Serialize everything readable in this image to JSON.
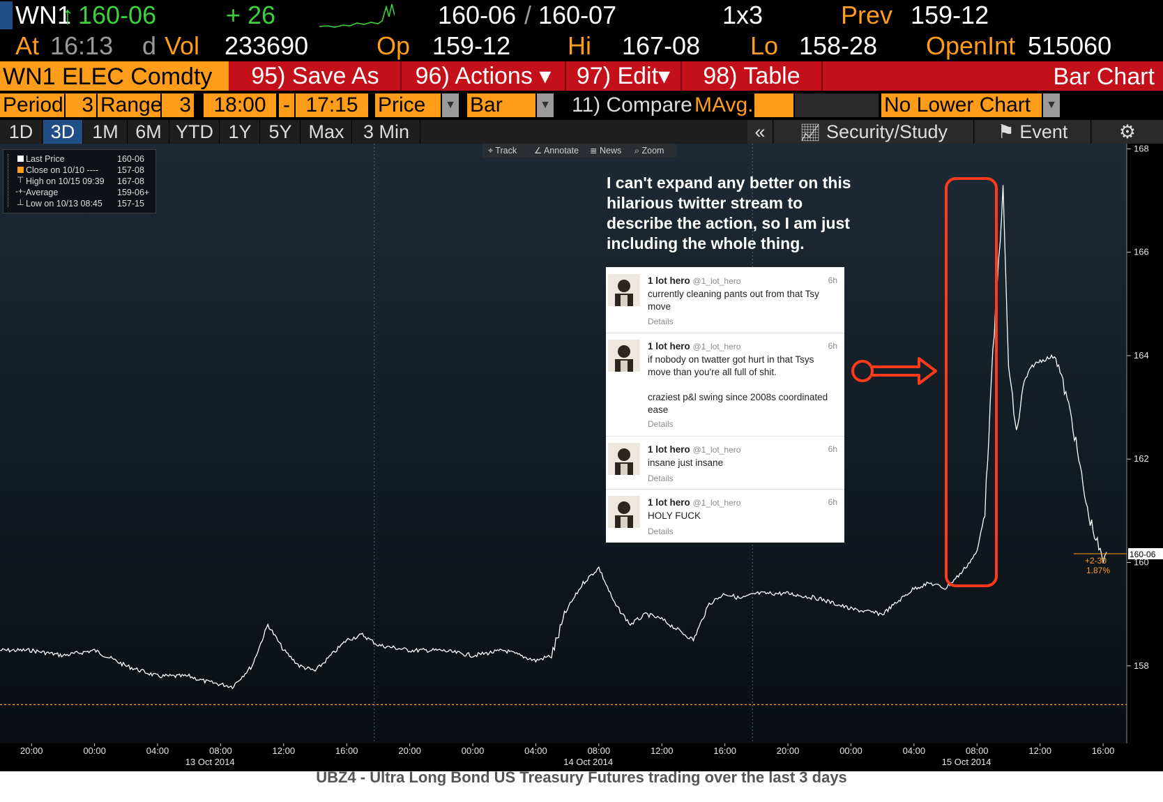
{
  "header": {
    "ticker": "WN1",
    "arrow": "↑",
    "last": "160-06",
    "change": "+ 26",
    "bid_ask_bid": "160-06",
    "bid_ask_sep": "/",
    "bid_ask_ask": "160-07",
    "size": "1x3",
    "prev_label": "Prev",
    "prev_value": "159-12",
    "at_label": "At",
    "time": "16:13",
    "d_label": "d",
    "vol_label": "Vol",
    "vol_value": "233690",
    "op_label": "Op",
    "op_value": "159-12",
    "hi_label": "Hi",
    "hi_value": "167-08",
    "lo_label": "Lo",
    "lo_value": "158-28",
    "openint_label": "OpenInt",
    "openint_value": "515060"
  },
  "menu": {
    "security": "WN1 ELEC Comdty",
    "save_as": "95) Save As",
    "actions": "96) Actions ▾",
    "edit": "97) Edit▾",
    "table": "98) Table",
    "bar_chart": "Bar Chart"
  },
  "params": {
    "period_label": "Period",
    "period_value": "3",
    "range_label": "Range",
    "range_value": "3",
    "start_time": "18:00",
    "dash": "-",
    "end_time": "17:15",
    "field": "Price",
    "style": "Bar",
    "compare": "11) Compare",
    "mavg": "MAvg.",
    "lower_chart": "No Lower Chart"
  },
  "tabs": [
    {
      "label": "1D"
    },
    {
      "label": "3D"
    },
    {
      "label": "1M"
    },
    {
      "label": "6M"
    },
    {
      "label": "YTD"
    },
    {
      "label": "1Y"
    },
    {
      "label": "5Y"
    },
    {
      "label": "Max"
    },
    {
      "label": "3 Min ▼"
    }
  ],
  "right_tabs": {
    "collapse": "«",
    "security_study": "Security/Study",
    "event": "Event",
    "gear": "⚙"
  },
  "icons": {
    "study": "chart-line-icon",
    "event": "flag-icon",
    "gear": "gear-icon"
  },
  "legend": [
    {
      "label": "Last Price",
      "value": "160-06"
    },
    {
      "label": "Close on 10/10 ----",
      "value": "157-08"
    },
    {
      "label": "High on 10/15 09:39",
      "value": "167-08"
    },
    {
      "label": "Average",
      "value": "159-06+"
    },
    {
      "label": "Low on 10/13 08:45",
      "value": "157-15"
    }
  ],
  "toolbar": {
    "track": "Track",
    "annotate": "Annotate",
    "news": "News",
    "zoom": "Zoom"
  },
  "annotation": "I can't expand any better on this hilarious twitter stream to describe the action, so I am just including the whole thing.",
  "tweets": [
    {
      "name": "1 lot hero",
      "handle": "@1_lot_hero",
      "time": "6h",
      "text": "currently cleaning pants out from that Tsy move",
      "details": "Details"
    },
    {
      "name": "1 lot hero",
      "handle": "@1_lot_hero",
      "time": "6h",
      "text": "if nobody on twatter got hurt in that Tsys move than you're all full of shit.\n\ncraziest p&l swing since 2008s coordinated ease",
      "details": "Details"
    },
    {
      "name": "1 lot hero",
      "handle": "@1_lot_hero",
      "time": "6h",
      "text": "insane just insane",
      "details": "Details"
    },
    {
      "name": "1 lot hero",
      "handle": "@1_lot_hero",
      "time": "6h",
      "text": "HOLY FUCK",
      "details": "Details"
    }
  ],
  "price_tags": {
    "last": "160-06",
    "change": "+2-30",
    "pct": "1.87%"
  },
  "caption": "UBZ4 - Ultra Long Bond US Treasury Futures trading over the last 3 days",
  "colors": {
    "orange": "#ff9c1a",
    "red_bar": "#c4101a",
    "green": "#3cd23c",
    "highlight": "#ff3a1a",
    "tab_selected": "#1f4f86"
  },
  "chart_data": {
    "type": "line",
    "y_ticks": [
      "158",
      "160",
      "162",
      "164",
      "166",
      "168"
    ],
    "ylim": [
      156.5,
      168.1
    ],
    "x_ticks": [
      "20:00",
      "00:00",
      "04:00",
      "08:00",
      "12:00",
      "16:00",
      "20:00",
      "00:00",
      "04:00",
      "08:00",
      "12:00",
      "16:00",
      "20:00",
      "00:00",
      "04:00",
      "08:00",
      "12:00",
      "16:00"
    ],
    "date_labels": [
      "13 Oct 2014",
      "14 Oct 2014",
      "15 Oct 2014"
    ],
    "close_line": 157.25,
    "series": [
      {
        "name": "Last Price",
        "x": [
          "10/12 18:00",
          "10/12 20:00",
          "10/12 22:00",
          "10/13 00:00",
          "10/13 02:00",
          "10/13 04:00",
          "10/13 06:00",
          "10/13 07:00",
          "10/13 08:45",
          "10/13 10:00",
          "10/13 11:00",
          "10/13 12:00",
          "10/13 13:00",
          "10/13 14:00",
          "10/13 15:00",
          "10/13 16:00",
          "10/13 17:00",
          "10/13 18:00",
          "10/13 20:00",
          "10/13 22:00",
          "10/14 00:00",
          "10/14 02:00",
          "10/14 04:00",
          "10/14 05:00",
          "10/14 06:00",
          "10/14 07:00",
          "10/14 08:00",
          "10/14 09:00",
          "10/14 10:00",
          "10/14 11:00",
          "10/14 12:00",
          "10/14 13:00",
          "10/14 14:00",
          "10/14 15:00",
          "10/14 16:00",
          "10/14 17:00",
          "10/14 18:00",
          "10/14 20:00",
          "10/14 22:00",
          "10/15 00:00",
          "10/15 02:00",
          "10/15 04:00",
          "10/15 05:00",
          "10/15 06:00",
          "10/15 07:00",
          "10/15 08:00",
          "10/15 08:30",
          "10/15 09:00",
          "10/15 09:39",
          "10/15 10:00",
          "10/15 10:30",
          "10/15 11:00",
          "10/15 11:30",
          "10/15 12:00",
          "10/15 13:00",
          "10/15 14:00",
          "10/15 15:00",
          "10/15 16:00",
          "10/15 16:13"
        ],
        "y": [
          158.3,
          158.3,
          158.2,
          158.3,
          158.0,
          157.8,
          157.8,
          157.7,
          157.6,
          158.0,
          158.8,
          158.3,
          158.0,
          157.9,
          158.2,
          158.5,
          158.6,
          158.4,
          158.3,
          158.3,
          158.2,
          158.3,
          158.1,
          158.2,
          159.1,
          159.6,
          159.9,
          159.2,
          158.8,
          159.0,
          158.9,
          158.7,
          158.5,
          159.2,
          159.4,
          159.3,
          159.4,
          159.4,
          159.3,
          159.1,
          159.0,
          159.5,
          159.6,
          159.5,
          159.8,
          160.2,
          161.0,
          164.0,
          167.2,
          163.8,
          162.5,
          163.5,
          163.8,
          163.9,
          164.0,
          162.8,
          161.0,
          160.0,
          160.2
        ]
      }
    ]
  }
}
